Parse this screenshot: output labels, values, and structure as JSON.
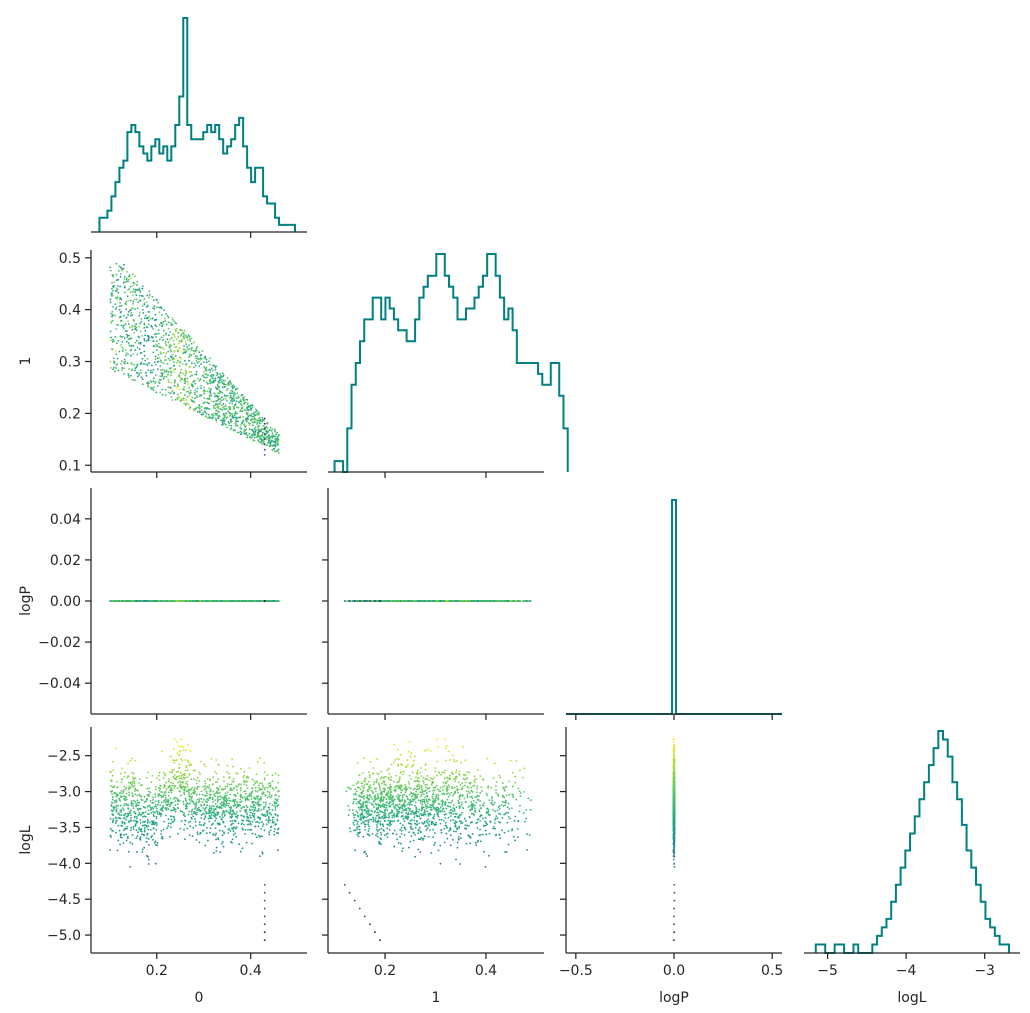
{
  "chart_data": {
    "type": "scatter",
    "kind": "corner-plot",
    "variables": [
      "0",
      "1",
      "logP",
      "logL"
    ],
    "axis_labels": {
      "x": [
        "0",
        "1",
        "logP",
        "logL"
      ],
      "y": [
        "",
        "1",
        "logP",
        "logL"
      ]
    },
    "ranges": {
      "0": [
        0.06,
        0.52
      ],
      "1": [
        0.087,
        0.515
      ],
      "logP": [
        -0.055,
        0.055
      ],
      "logL": [
        -5.25,
        -2.1
      ]
    },
    "ticks": {
      "0": [
        0.2,
        0.4
      ],
      "1": [
        0.1,
        0.2,
        0.3,
        0.4,
        0.5
      ],
      "logP": [
        -0.04,
        -0.02,
        0.0,
        0.02,
        0.04
      ],
      "logL": [
        -5.0,
        -4.5,
        -4.0,
        -3.5,
        -3.0,
        -2.5
      ]
    },
    "ticks_bottom": {
      "0": [
        "0.2",
        "0.4"
      ],
      "1": [
        "0.2",
        "0.4"
      ],
      "logP": [
        "−0.5",
        "0.0",
        "0.5"
      ],
      "logL": [
        "−5",
        "−4",
        "−3"
      ]
    },
    "ticks_left": {
      "1": [
        "0.1",
        "0.2",
        "0.3",
        "0.4",
        "0.5"
      ],
      "logP": [
        "−0.04",
        "−0.02",
        "0.00",
        "0.02",
        "0.04"
      ],
      "logL": [
        "−5.0",
        "−4.5",
        "−4.0",
        "−3.5",
        "−3.0",
        "−2.5"
      ]
    },
    "diag_logP_range": [
      -0.55,
      0.55
    ],
    "diag_logP_ticks": [
      -0.5,
      0.0,
      0.5
    ],
    "diag_logL_range": [
      -5.3,
      -2.55
    ],
    "diag_logL_ticks": [
      -5,
      -4,
      -3
    ],
    "hist_color": "#008080",
    "colormap": "viridis",
    "color_by": "logL",
    "n_samples": 1500,
    "histograms": {
      "0": {
        "x0": 0.078,
        "bin_width": 0.0085,
        "counts": [
          2,
          2,
          3,
          5,
          7,
          9,
          10,
          14,
          15,
          14,
          12,
          11,
          10,
          12,
          13,
          11,
          12,
          10,
          12,
          15,
          19,
          30,
          15,
          13,
          13,
          13,
          14,
          15,
          14,
          15,
          13,
          11,
          12,
          13,
          15,
          16,
          12,
          9,
          7,
          9,
          9,
          5,
          4,
          4,
          2,
          1,
          1,
          1,
          1
        ]
      },
      "1": {
        "x0": 0.1,
        "bin_width": 0.0084,
        "counts": [
          1,
          1,
          0,
          4,
          8,
          10,
          12,
          14,
          14,
          16,
          16,
          14,
          16,
          15,
          14,
          13,
          13,
          12,
          12,
          14,
          16,
          17,
          18,
          18,
          20,
          20,
          18,
          17,
          16,
          14,
          14,
          15,
          15,
          16,
          17,
          18,
          20,
          20,
          18,
          16,
          14,
          15,
          13,
          10,
          10,
          10,
          10,
          10,
          9,
          8,
          8,
          10,
          10,
          7,
          4
        ]
      },
      "logP": {
        "x0": -0.01,
        "bin_width": 0.02,
        "counts": [
          1
        ]
      },
      "logL": {
        "x0": -5.15,
        "bin_width": 0.06,
        "counts": [
          1,
          1,
          0,
          0,
          1,
          1,
          0,
          0,
          1,
          0,
          0,
          0,
          1,
          2,
          3,
          4,
          6,
          8,
          10,
          12,
          14,
          16,
          18,
          20,
          22,
          24,
          26,
          25,
          23,
          20,
          18,
          15,
          12,
          10,
          8,
          6,
          4,
          3,
          2,
          1,
          1
        ]
      }
    }
  }
}
